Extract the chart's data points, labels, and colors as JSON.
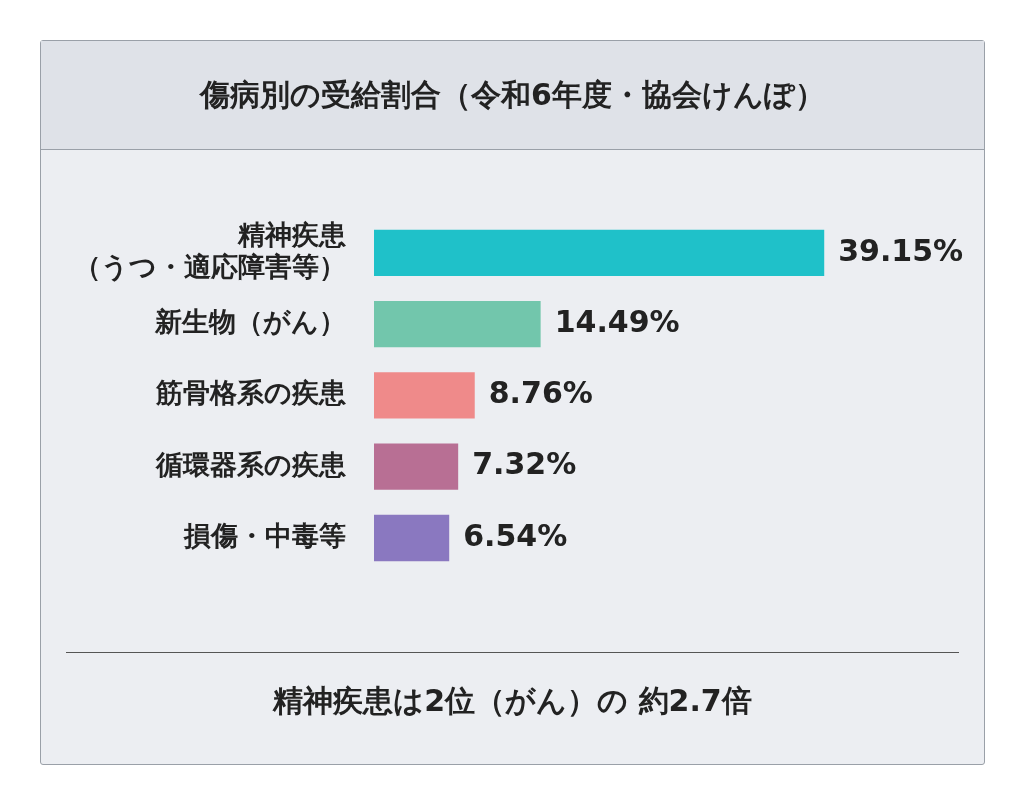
{
  "chart_data": {
    "type": "bar",
    "orientation": "horizontal",
    "title": "傷病別の受給割合（令和6年度・協会けんぽ）",
    "categories": [
      "精神疾患（うつ・適応障害等）",
      "新生物（がん）",
      "筋骨格系の疾患",
      "循環器系の疾患",
      "損傷・中毒等"
    ],
    "values": [
      39.15,
      14.49,
      8.76,
      7.32,
      6.54
    ],
    "colors": [
      "#1fc1c9",
      "#72c6ac",
      "#ef8a8a",
      "#b86f94",
      "#8a78c0"
    ],
    "value_labels": [
      "39.15%",
      "14.49%",
      "8.76%",
      "7.32%",
      "6.54%"
    ],
    "annotations": [
      "精神疾患は2位（がん）の 約2.7倍"
    ]
  }
}
